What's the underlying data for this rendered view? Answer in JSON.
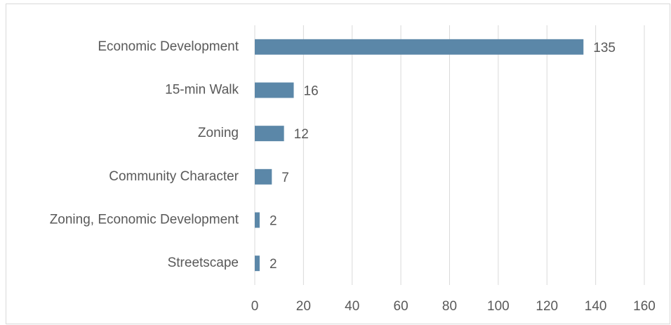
{
  "chart_data": {
    "type": "bar",
    "orientation": "horizontal",
    "categories": [
      "Economic Development",
      "15-min Walk",
      "Zoning",
      "Community Character",
      "Zoning, Economic Development",
      "Streetscape"
    ],
    "values": [
      135,
      16,
      12,
      7,
      2,
      2
    ],
    "color": "#5b87a8",
    "xlim": [
      0,
      160
    ],
    "xticks": [
      0,
      20,
      40,
      60,
      80,
      100,
      120,
      140,
      160
    ],
    "grid": true,
    "data_labels": true
  }
}
